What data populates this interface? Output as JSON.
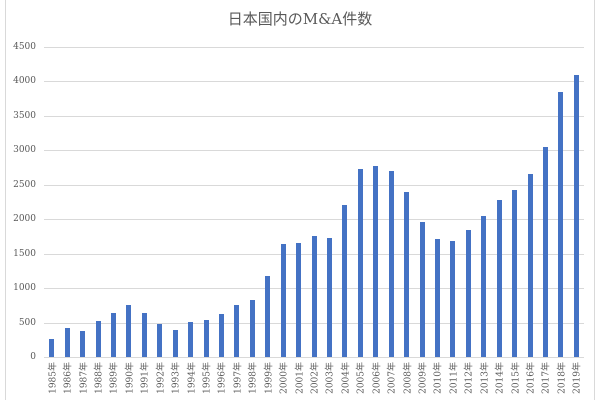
{
  "chart_data": {
    "type": "bar",
    "title": "日本国内のM&A件数",
    "xlabel": "",
    "ylabel": "",
    "ylim": [
      0,
      4500
    ],
    "yticks": [
      0,
      500,
      1000,
      1500,
      2000,
      2500,
      3000,
      3500,
      4000,
      4500
    ],
    "grid": true,
    "legend": null,
    "bar_color": "#4472c4",
    "categories": [
      "1985年",
      "1986年",
      "1987年",
      "1988年",
      "1989年",
      "1990年",
      "1991年",
      "1992年",
      "1993年",
      "1994年",
      "1995年",
      "1996年",
      "1997年",
      "1998年",
      "1999年",
      "2000年",
      "2001年",
      "2002年",
      "2003年",
      "2004年",
      "2005年",
      "2006年",
      "2007年",
      "2008年",
      "2009年",
      "2010年",
      "2011年",
      "2012年",
      "2013年",
      "2014年",
      "2015年",
      "2016年",
      "2017年",
      "2018年",
      "2019年"
    ],
    "values": [
      260,
      417,
      380,
      526,
      645,
      754,
      638,
      483,
      397,
      505,
      531,
      621,
      753,
      834,
      1169,
      1635,
      1653,
      1752,
      1728,
      2211,
      2725,
      2775,
      2696,
      2399,
      1957,
      1707,
      1687,
      1848,
      2048,
      2285,
      2428,
      2652,
      3050,
      3850,
      4088
    ]
  }
}
